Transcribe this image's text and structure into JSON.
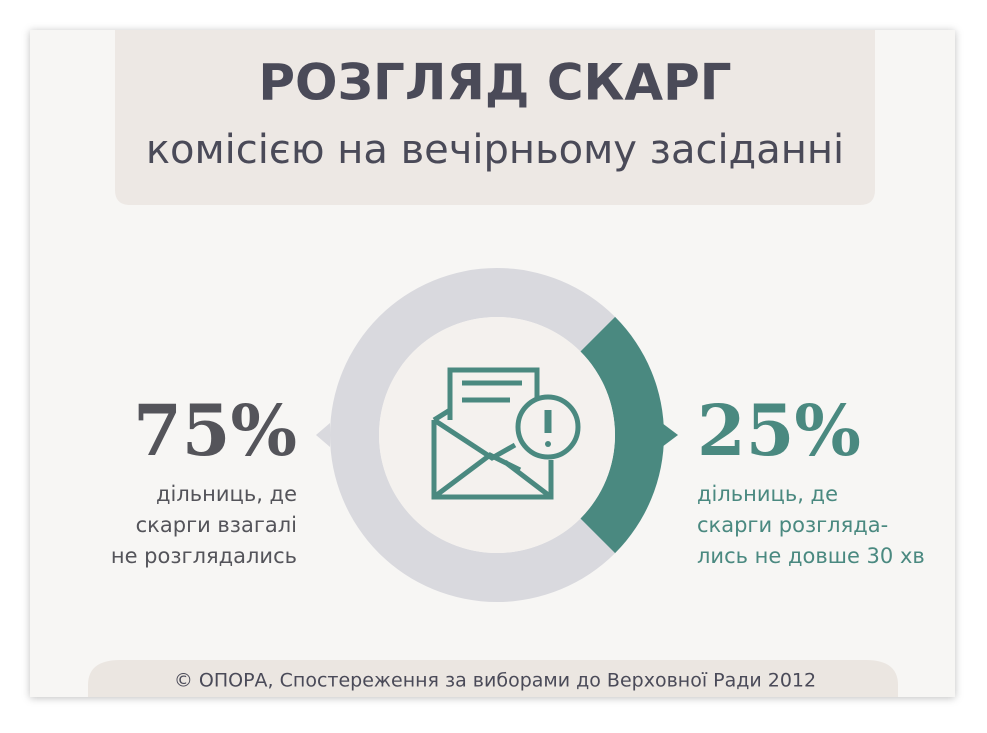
{
  "chart_data": {
    "type": "pie",
    "title": "РОЗГЛЯД СКАРГ",
    "subtitle": "комісією на вечірньому засіданні",
    "categories": [
      [
        "дільниць, де",
        "скарги взагалі",
        "не розглядались"
      ],
      [
        "дільниць,  де",
        "скарги розгляда-",
        "лись не довше 30 хв"
      ]
    ],
    "values": [
      75,
      25
    ],
    "value_labels": [
      "75%",
      "25%"
    ],
    "colors": [
      "#d9d9de",
      "#4a8980"
    ],
    "label_colors": [
      "#54545a",
      "#4a8980"
    ],
    "source": "© ОПОРА, Спостереження за виборами до Верховної Ради 2012"
  }
}
